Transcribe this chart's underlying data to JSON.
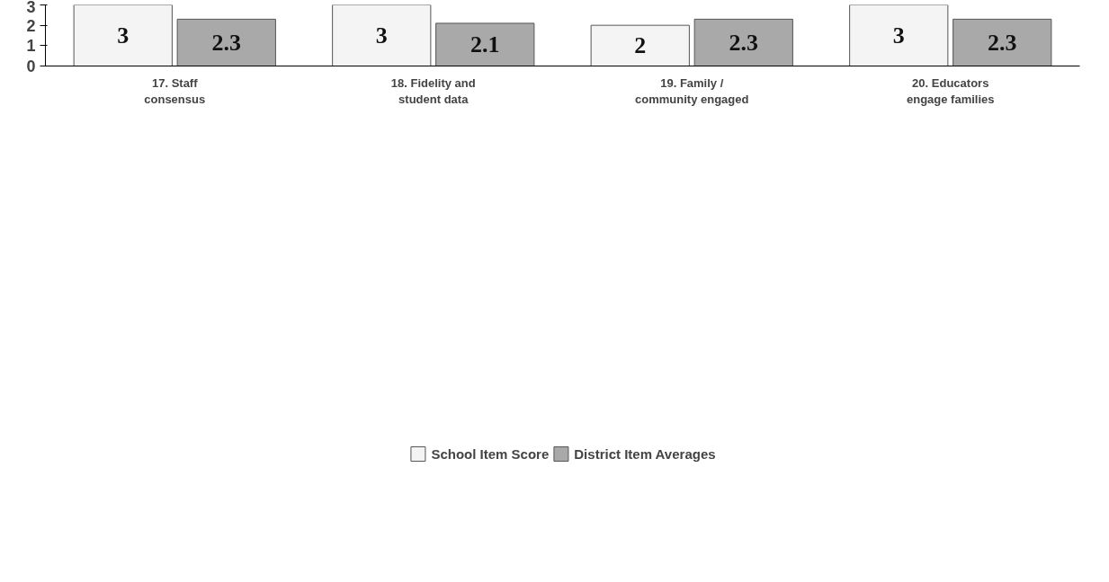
{
  "chart_data": {
    "type": "bar",
    "categories": [
      "17. Staff\nconsensus",
      "18. Fidelity and\nstudent data",
      "19. Family /\ncommunity engaged",
      "20. Educators\nengage families"
    ],
    "series": [
      {
        "name": "School Item Score",
        "color": "#f4f4f4",
        "values": [
          3,
          3,
          2,
          3
        ]
      },
      {
        "name": "District Item Averages",
        "color": "#a9a9a9",
        "values": [
          2.3,
          2.1,
          2.3,
          2.3
        ]
      }
    ],
    "ylim": [
      0,
      3
    ],
    "yticks": [
      0,
      1,
      2,
      3
    ],
    "grid": false,
    "legend": "bottom",
    "data_labels": true
  }
}
